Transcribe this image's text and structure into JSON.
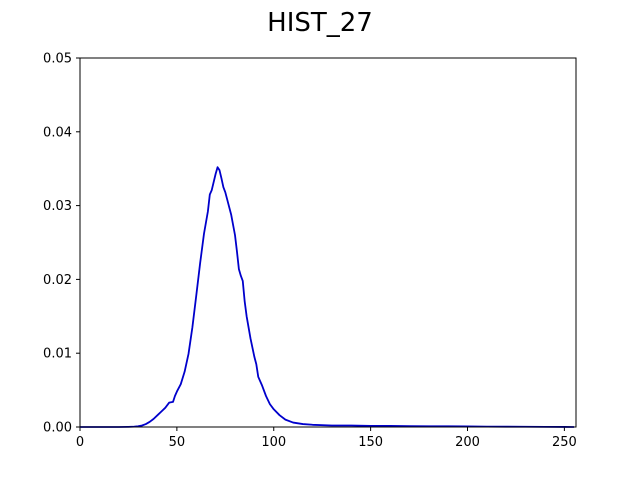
{
  "chart_data": {
    "type": "line",
    "title": "HIST_27",
    "xlabel": "",
    "ylabel": "",
    "xlim": [
      0,
      256
    ],
    "ylim": [
      0,
      0.05
    ],
    "grid": false,
    "legend": "none",
    "x_ticks": [
      0,
      50,
      100,
      150,
      200,
      250
    ],
    "x_tick_labels": [
      "0",
      "50",
      "100",
      "150",
      "200",
      "250"
    ],
    "y_ticks": [
      0.0,
      0.01,
      0.02,
      0.03,
      0.04,
      0.05
    ],
    "y_tick_labels": [
      "0.00",
      "0.01",
      "0.02",
      "0.03",
      "0.04",
      "0.05"
    ],
    "series": [
      {
        "color": "#0000cc",
        "x": [
          0,
          10,
          20,
          25,
          28,
          30,
          32,
          34,
          36,
          38,
          40,
          42,
          44,
          46,
          48,
          49,
          50,
          52,
          54,
          56,
          58,
          60,
          62,
          64,
          66,
          67,
          68,
          70,
          71,
          72,
          73,
          74,
          75,
          76,
          78,
          80,
          81,
          82,
          83,
          84,
          85,
          86,
          88,
          90,
          91,
          92,
          94,
          96,
          98,
          100,
          103,
          106,
          110,
          115,
          120,
          130,
          140,
          150,
          160,
          170,
          180,
          190,
          200,
          210,
          220,
          230,
          240,
          250,
          255
        ],
        "y": [
          0,
          0,
          0,
          2e-05,
          5e-05,
          0.0001,
          0.0002,
          0.0004,
          0.0007,
          0.0011,
          0.0016,
          0.0021,
          0.0026,
          0.0033,
          0.0034,
          0.0042,
          0.0048,
          0.0058,
          0.0075,
          0.0099,
          0.0135,
          0.0178,
          0.0222,
          0.0262,
          0.0292,
          0.0315,
          0.0321,
          0.0343,
          0.0352,
          0.0348,
          0.0337,
          0.0325,
          0.0318,
          0.0308,
          0.0288,
          0.026,
          0.0238,
          0.0214,
          0.0205,
          0.0198,
          0.017,
          0.015,
          0.012,
          0.0095,
          0.0085,
          0.0068,
          0.0056,
          0.0042,
          0.0031,
          0.0024,
          0.0016,
          0.001,
          0.0006,
          0.0004,
          0.0003,
          0.0002,
          0.0002,
          0.00015,
          0.00015,
          0.00012,
          0.0001,
          0.0001,
          8e-05,
          5e-05,
          4e-05,
          3e-05,
          2e-05,
          1e-05,
          0
        ]
      }
    ]
  }
}
